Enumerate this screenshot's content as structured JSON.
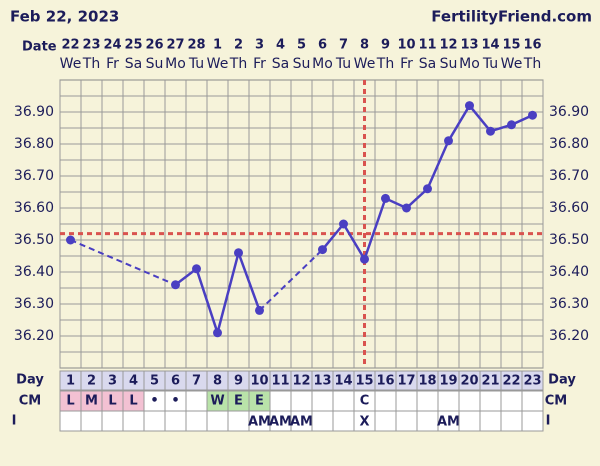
{
  "header": {
    "date": "Feb 22, 2023",
    "site": "FertilityFriend.com"
  },
  "chart_data": {
    "type": "line",
    "date_label": "Date",
    "dates": [
      22,
      23,
      24,
      25,
      26,
      27,
      28,
      1,
      2,
      3,
      4,
      5,
      6,
      7,
      8,
      9,
      10,
      11,
      12,
      13,
      14,
      15,
      16
    ],
    "weekdays": [
      "We",
      "Th",
      "Fr",
      "Sa",
      "Su",
      "Mo",
      "Tu",
      "We",
      "Th",
      "Fr",
      "Sa",
      "Su",
      "Mo",
      "Tu",
      "We",
      "Th",
      "Fr",
      "Sa",
      "Su",
      "Mo",
      "Tu",
      "We",
      "Th"
    ],
    "day_label": "Day",
    "categories": [
      1,
      2,
      3,
      4,
      5,
      6,
      7,
      8,
      9,
      10,
      11,
      12,
      13,
      14,
      15,
      16,
      17,
      18,
      19,
      20,
      21,
      22,
      23
    ],
    "values": [
      36.5,
      null,
      null,
      null,
      null,
      36.36,
      36.41,
      36.21,
      36.46,
      36.28,
      null,
      null,
      36.47,
      36.55,
      36.44,
      36.63,
      36.6,
      36.66,
      36.81,
      36.92,
      36.84,
      36.86,
      36.89
    ],
    "color": "#4a3fc2",
    "ylim": [
      36.1,
      37.0
    ],
    "yticks": [
      {
        "value": 36.2,
        "label": "36.20"
      },
      {
        "value": 36.3,
        "label": "36.30"
      },
      {
        "value": 36.4,
        "label": "36.40"
      },
      {
        "value": 36.5,
        "label": "36.50"
      },
      {
        "value": 36.6,
        "label": "36.60"
      },
      {
        "value": 36.7,
        "label": "36.70"
      },
      {
        "value": 36.8,
        "label": "36.80"
      },
      {
        "value": 36.9,
        "label": "36.90"
      }
    ],
    "minor_yticks": [
      36.15,
      36.25,
      36.35,
      36.45,
      36.55,
      36.65,
      36.75,
      36.85,
      36.95
    ],
    "grid": true,
    "coverline": 36.52,
    "ovulation_day": 15,
    "marker_color": "#d9534f",
    "cm_label": "CM",
    "cm": [
      "L",
      "M",
      "L",
      "L",
      "•",
      "•",
      null,
      "W",
      "E",
      "E",
      null,
      null,
      null,
      null,
      "C",
      null,
      null,
      null,
      null,
      null,
      null,
      null,
      null
    ],
    "cm_colors": [
      "#f3c1d3",
      "#f3c1d3",
      "#f3c1d3",
      "#f3c1d3",
      null,
      null,
      null,
      "#b9e3a9",
      "#b9e3a9",
      "#b9e3a9",
      null,
      null,
      null,
      null,
      null,
      null,
      null,
      null,
      null,
      null,
      null,
      null,
      null
    ],
    "i_label": "I",
    "intercourse": [
      null,
      null,
      null,
      null,
      null,
      null,
      null,
      null,
      null,
      "AM",
      "AM",
      "AM",
      null,
      null,
      "X",
      null,
      null,
      null,
      "AM",
      null,
      null,
      null,
      null
    ]
  }
}
